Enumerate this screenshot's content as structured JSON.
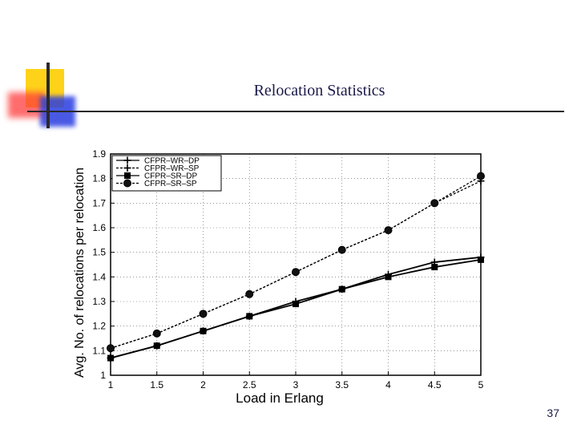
{
  "slide": {
    "title": "Relocation Statistics",
    "page_number": "37"
  },
  "colors": {
    "title_text": "#1a1a4a",
    "deco_yellow": "#ffd21a",
    "deco_red": "#ff3b3b",
    "deco_blue": "#2a3de0",
    "rule": "#2a2a2a"
  },
  "chart_data": {
    "type": "line",
    "title": "",
    "xlabel": "Load in Erlang",
    "ylabel": "Avg. No. of relocations per relocation",
    "xlim": [
      1,
      5
    ],
    "ylim": [
      1,
      1.9
    ],
    "xticks": [
      "1",
      "1.5",
      "2",
      "2.5",
      "3",
      "3.5",
      "4",
      "4.5",
      "5"
    ],
    "yticks": [
      "1",
      "1.1",
      "1.2",
      "1.3",
      "1.4",
      "1.5",
      "1.6",
      "1.7",
      "1.8",
      "1.9"
    ],
    "legend_position": "top-left",
    "grid": true,
    "x": [
      1,
      1.5,
      2,
      2.5,
      3,
      3.5,
      4,
      4.5,
      5
    ],
    "series": [
      {
        "name": "CFPR–WR–DP",
        "marker": "plus",
        "dash": "solid",
        "values": [
          1.07,
          1.12,
          1.18,
          1.24,
          1.3,
          1.35,
          1.41,
          1.46,
          1.48
        ]
      },
      {
        "name": "CFPR–WR–SP",
        "marker": "plus",
        "dash": "dashed",
        "values": [
          1.11,
          1.17,
          1.25,
          1.33,
          1.42,
          1.51,
          1.59,
          1.7,
          1.79
        ]
      },
      {
        "name": "CFPR–SR–DP",
        "marker": "square",
        "dash": "solid",
        "values": [
          1.07,
          1.12,
          1.18,
          1.24,
          1.29,
          1.35,
          1.4,
          1.44,
          1.47
        ]
      },
      {
        "name": "CFPR–SR–SP",
        "marker": "circle",
        "dash": "dashed",
        "values": [
          1.11,
          1.17,
          1.25,
          1.33,
          1.42,
          1.51,
          1.59,
          1.7,
          1.81
        ]
      }
    ]
  }
}
